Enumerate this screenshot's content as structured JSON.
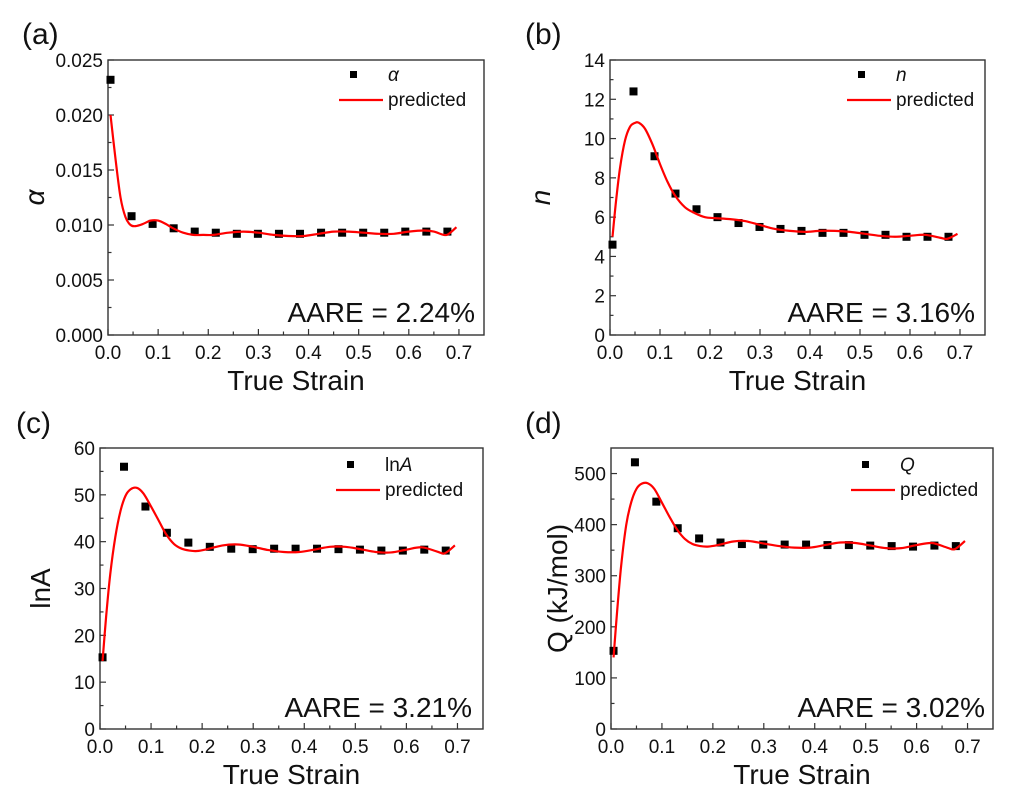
{
  "chart_data": [
    {
      "type": "scatter",
      "panel_label": "(a)",
      "title": "",
      "xlabel": "True Strain",
      "ylabel": "α",
      "ylabel_italic": true,
      "xlim": [
        0.0,
        0.75
      ],
      "ylim": [
        0.0,
        0.025
      ],
      "xticks": [
        "0.0",
        "0.1",
        "0.2",
        "0.3",
        "0.4",
        "0.5",
        "0.6",
        "0.7"
      ],
      "yticks": [
        "0.000",
        "0.005",
        "0.010",
        "0.015",
        "0.020",
        "0.025"
      ],
      "ytick_values": [
        0,
        0.005,
        0.01,
        0.015,
        0.02,
        0.025
      ],
      "legend": [
        {
          "label": "α",
          "italic": true,
          "marker": "square",
          "color": "#000000"
        },
        {
          "label": "predicted",
          "italic": false,
          "marker": "line",
          "color": "#ff0000"
        }
      ],
      "legend_position": "top-right",
      "annotation": "AARE = 2.24%",
      "series": [
        {
          "name": "α",
          "kind": "markers",
          "x": [
            0.005,
            0.047,
            0.089,
            0.131,
            0.173,
            0.215,
            0.257,
            0.299,
            0.341,
            0.383,
            0.425,
            0.467,
            0.509,
            0.551,
            0.593,
            0.635,
            0.677
          ],
          "y": [
            0.0232,
            0.0108,
            0.0101,
            0.0097,
            0.0094,
            0.0093,
            0.0092,
            0.0092,
            0.0092,
            0.0092,
            0.0093,
            0.0093,
            0.0093,
            0.0093,
            0.0094,
            0.0094,
            0.0094
          ]
        },
        {
          "name": "predicted",
          "kind": "line",
          "x": [
            0.005,
            0.015,
            0.025,
            0.035,
            0.045,
            0.055,
            0.07,
            0.085,
            0.1,
            0.115,
            0.13,
            0.15,
            0.17,
            0.19,
            0.21,
            0.24,
            0.27,
            0.3,
            0.33,
            0.36,
            0.39,
            0.42,
            0.45,
            0.48,
            0.51,
            0.54,
            0.57,
            0.6,
            0.63,
            0.65,
            0.67,
            0.68,
            0.695
          ],
          "y": [
            0.02,
            0.016,
            0.0125,
            0.0107,
            0.01,
            0.0099,
            0.0101,
            0.0104,
            0.0104,
            0.0101,
            0.0097,
            0.0093,
            0.0091,
            0.0091,
            0.0091,
            0.0093,
            0.0094,
            0.0093,
            0.0091,
            0.009,
            0.009,
            0.0092,
            0.0094,
            0.0094,
            0.0093,
            0.0092,
            0.0092,
            0.0094,
            0.0095,
            0.0094,
            0.0091,
            0.0092,
            0.0098
          ]
        }
      ]
    },
    {
      "type": "scatter",
      "panel_label": "(b)",
      "title": "",
      "xlabel": "True Strain",
      "ylabel": "n",
      "ylabel_italic": true,
      "xlim": [
        0.0,
        0.75
      ],
      "ylim": [
        0,
        14
      ],
      "xticks": [
        "0.0",
        "0.1",
        "0.2",
        "0.3",
        "0.4",
        "0.5",
        "0.6",
        "0.7"
      ],
      "yticks": [
        "0",
        "2",
        "4",
        "6",
        "8",
        "10",
        "12",
        "14"
      ],
      "ytick_values": [
        0,
        2,
        4,
        6,
        8,
        10,
        12,
        14
      ],
      "legend": [
        {
          "label": "n",
          "italic": true,
          "marker": "square",
          "color": "#000000"
        },
        {
          "label": "predicted",
          "italic": false,
          "marker": "line",
          "color": "#ff0000"
        }
      ],
      "legend_position": "top-right",
      "annotation": "AARE = 3.16%",
      "series": [
        {
          "name": "n",
          "kind": "markers",
          "x": [
            0.005,
            0.047,
            0.089,
            0.131,
            0.173,
            0.215,
            0.257,
            0.299,
            0.341,
            0.383,
            0.425,
            0.467,
            0.509,
            0.551,
            0.593,
            0.635,
            0.677
          ],
          "y": [
            4.6,
            12.4,
            9.1,
            7.2,
            6.4,
            6.0,
            5.7,
            5.5,
            5.4,
            5.3,
            5.2,
            5.2,
            5.1,
            5.1,
            5.0,
            5.0,
            5.0
          ]
        },
        {
          "name": "predicted",
          "kind": "line",
          "x": [
            0.005,
            0.012,
            0.02,
            0.03,
            0.04,
            0.05,
            0.058,
            0.07,
            0.085,
            0.1,
            0.115,
            0.13,
            0.15,
            0.17,
            0.19,
            0.21,
            0.24,
            0.27,
            0.3,
            0.33,
            0.36,
            0.39,
            0.42,
            0.45,
            0.48,
            0.51,
            0.54,
            0.57,
            0.6,
            0.63,
            0.66,
            0.675,
            0.695
          ],
          "y": [
            5.0,
            6.8,
            8.5,
            9.9,
            10.6,
            10.8,
            10.8,
            10.5,
            9.7,
            8.7,
            7.8,
            7.1,
            6.5,
            6.2,
            6.0,
            5.95,
            5.9,
            5.8,
            5.6,
            5.4,
            5.3,
            5.25,
            5.3,
            5.3,
            5.25,
            5.15,
            5.05,
            5.0,
            5.05,
            5.1,
            4.95,
            4.9,
            5.15
          ]
        }
      ]
    },
    {
      "type": "scatter",
      "panel_label": "(c)",
      "title": "",
      "xlabel": "True Strain",
      "ylabel": "lnA",
      "ylabel_italic": false,
      "xlim": [
        0.0,
        0.75
      ],
      "ylim": [
        0,
        60
      ],
      "xticks": [
        "0.0",
        "0.1",
        "0.2",
        "0.3",
        "0.4",
        "0.5",
        "0.6",
        "0.7"
      ],
      "yticks": [
        "0",
        "10",
        "20",
        "30",
        "40",
        "50",
        "60"
      ],
      "ytick_values": [
        0,
        10,
        20,
        30,
        40,
        50,
        60
      ],
      "legend": [
        {
          "label": "ln",
          "label_italic_suffix": "A",
          "marker": "square",
          "color": "#000000"
        },
        {
          "label": "predicted",
          "italic": false,
          "marker": "line",
          "color": "#ff0000"
        }
      ],
      "legend_position": "top-right",
      "annotation": "AARE = 3.21%",
      "series": [
        {
          "name": "lnA",
          "kind": "markers",
          "x": [
            0.005,
            0.047,
            0.089,
            0.131,
            0.173,
            0.215,
            0.257,
            0.299,
            0.341,
            0.383,
            0.425,
            0.467,
            0.509,
            0.551,
            0.593,
            0.635,
            0.677
          ],
          "y": [
            15.3,
            56.0,
            47.5,
            41.9,
            39.8,
            38.9,
            38.5,
            38.4,
            38.5,
            38.5,
            38.5,
            38.4,
            38.3,
            38.1,
            38.1,
            38.3,
            38.1
          ]
        },
        {
          "name": "predicted",
          "kind": "line",
          "x": [
            0.005,
            0.012,
            0.02,
            0.03,
            0.04,
            0.05,
            0.06,
            0.072,
            0.085,
            0.1,
            0.115,
            0.13,
            0.145,
            0.16,
            0.175,
            0.19,
            0.21,
            0.24,
            0.27,
            0.3,
            0.33,
            0.36,
            0.39,
            0.42,
            0.45,
            0.48,
            0.51,
            0.54,
            0.57,
            0.6,
            0.63,
            0.66,
            0.675,
            0.695
          ],
          "y": [
            14.5,
            24.0,
            33.0,
            41.0,
            46.5,
            49.8,
            51.2,
            51.5,
            50.3,
            47.5,
            44.5,
            41.5,
            39.5,
            38.5,
            38.1,
            38.0,
            38.4,
            39.2,
            39.4,
            38.9,
            38.2,
            37.8,
            37.8,
            38.3,
            38.9,
            38.9,
            38.4,
            37.8,
            37.7,
            38.3,
            38.8,
            37.9,
            37.5,
            39.2
          ]
        }
      ]
    },
    {
      "type": "scatter",
      "panel_label": "(d)",
      "title": "",
      "xlabel": "True Strain",
      "ylabel": "Q (kJ/mol)",
      "ylabel_italic": false,
      "xlim": [
        0.0,
        0.75
      ],
      "ylim": [
        0,
        550
      ],
      "xticks": [
        "0.0",
        "0.1",
        "0.2",
        "0.3",
        "0.4",
        "0.5",
        "0.6",
        "0.7"
      ],
      "yticks": [
        "0",
        "100",
        "200",
        "300",
        "400",
        "500"
      ],
      "ytick_values": [
        0,
        100,
        200,
        300,
        400,
        500
      ],
      "legend": [
        {
          "label": "Q",
          "italic": true,
          "marker": "square",
          "color": "#000000"
        },
        {
          "label": "predicted",
          "italic": false,
          "marker": "line",
          "color": "#ff0000"
        }
      ],
      "legend_position": "top-right",
      "annotation": "AARE = 3.02%",
      "series": [
        {
          "name": "Q",
          "kind": "markers",
          "x": [
            0.005,
            0.047,
            0.089,
            0.131,
            0.173,
            0.215,
            0.257,
            0.299,
            0.341,
            0.383,
            0.425,
            0.467,
            0.509,
            0.551,
            0.593,
            0.635,
            0.677
          ],
          "y": [
            153,
            522,
            445,
            393,
            373,
            365,
            362,
            361,
            361,
            361,
            360,
            360,
            359,
            358,
            357,
            359,
            358
          ]
        },
        {
          "name": "predicted",
          "kind": "line",
          "x": [
            0.005,
            0.012,
            0.02,
            0.03,
            0.04,
            0.05,
            0.06,
            0.072,
            0.085,
            0.1,
            0.115,
            0.13,
            0.145,
            0.16,
            0.175,
            0.19,
            0.21,
            0.24,
            0.27,
            0.3,
            0.33,
            0.36,
            0.39,
            0.42,
            0.45,
            0.48,
            0.51,
            0.54,
            0.57,
            0.6,
            0.63,
            0.66,
            0.675,
            0.695
          ],
          "y": [
            140,
            230,
            320,
            400,
            445,
            470,
            480,
            481,
            470,
            443,
            415,
            390,
            372,
            362,
            358,
            357,
            360,
            367,
            368,
            363,
            358,
            355,
            355,
            360,
            365,
            364,
            359,
            354,
            354,
            360,
            364,
            355,
            352,
            368
          ]
        }
      ]
    }
  ]
}
